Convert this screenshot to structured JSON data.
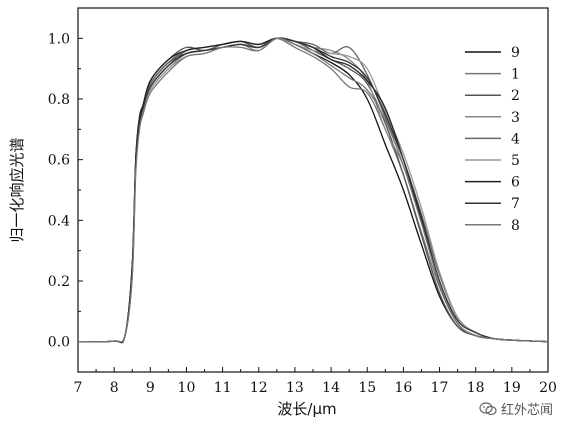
{
  "chart_data": {
    "type": "line",
    "xlabel": "波长/μm",
    "ylabel": "归一化响应光谱",
    "xlim": [
      7,
      20
    ],
    "ylim": [
      -0.1,
      1.1
    ],
    "xticks": [
      "7",
      "8",
      "9",
      "10",
      "11",
      "12",
      "13",
      "14",
      "15",
      "16",
      "17",
      "18",
      "19",
      "20"
    ],
    "yticks": [
      "0.0",
      "0.2",
      "0.4",
      "0.6",
      "0.8",
      "1.0"
    ],
    "grid": false,
    "legend_position": "right",
    "series": [
      {
        "name": "9",
        "color": "#111111",
        "x": [
          7,
          8,
          8.3,
          8.5,
          8.6,
          8.7,
          8.8,
          9,
          9.5,
          10,
          10.5,
          11,
          11.5,
          12,
          12.5,
          13,
          13.5,
          14,
          14.5,
          15,
          15.5,
          16,
          16.5,
          17,
          17.5,
          18,
          18.5,
          19,
          20
        ],
        "y": [
          0,
          0.002,
          0.02,
          0.25,
          0.6,
          0.74,
          0.78,
          0.85,
          0.92,
          0.95,
          0.96,
          0.97,
          0.98,
          0.97,
          1.0,
          0.98,
          0.95,
          0.92,
          0.88,
          0.8,
          0.65,
          0.5,
          0.32,
          0.15,
          0.05,
          0.02,
          0.01,
          0.005,
          0
        ]
      },
      {
        "name": "1",
        "color": "#777777",
        "x": [
          7,
          8,
          8.3,
          8.5,
          8.6,
          8.7,
          8.8,
          9,
          9.5,
          10,
          10.5,
          11,
          11.5,
          12,
          12.5,
          13,
          13.5,
          14,
          14.5,
          15,
          15.5,
          16,
          16.5,
          17,
          17.5,
          18,
          18.5,
          19,
          20
        ],
        "y": [
          0,
          0.002,
          0.02,
          0.22,
          0.58,
          0.72,
          0.77,
          0.84,
          0.91,
          0.96,
          0.97,
          0.98,
          0.99,
          0.98,
          1.0,
          0.97,
          0.94,
          0.9,
          0.84,
          0.82,
          0.7,
          0.55,
          0.36,
          0.18,
          0.06,
          0.02,
          0.01,
          0.005,
          0
        ]
      },
      {
        "name": "2",
        "color": "#555555",
        "x": [
          7,
          8,
          8.3,
          8.5,
          8.6,
          8.7,
          8.8,
          9,
          9.5,
          10,
          10.5,
          11,
          11.5,
          12,
          12.5,
          13,
          13.5,
          14,
          14.5,
          15,
          15.5,
          16,
          16.5,
          17,
          17.5,
          18,
          18.5,
          19,
          20
        ],
        "y": [
          0,
          0.002,
          0.02,
          0.24,
          0.6,
          0.73,
          0.78,
          0.86,
          0.93,
          0.97,
          0.96,
          0.98,
          0.99,
          0.97,
          1.0,
          0.99,
          0.96,
          0.93,
          0.9,
          0.85,
          0.72,
          0.55,
          0.35,
          0.16,
          0.05,
          0.02,
          0.01,
          0.005,
          0
        ]
      },
      {
        "name": "3",
        "color": "#888888",
        "x": [
          7,
          8,
          8.3,
          8.5,
          8.6,
          8.7,
          8.8,
          9,
          9.5,
          10,
          10.5,
          11,
          11.5,
          12,
          12.5,
          13,
          13.5,
          14,
          14.5,
          15,
          15.5,
          16,
          16.5,
          17,
          17.5,
          18,
          18.5,
          19,
          20
        ],
        "y": [
          0,
          0.002,
          0.02,
          0.23,
          0.59,
          0.72,
          0.76,
          0.83,
          0.9,
          0.95,
          0.96,
          0.97,
          0.98,
          0.96,
          1.0,
          0.99,
          0.97,
          0.96,
          0.93,
          0.86,
          0.7,
          0.58,
          0.4,
          0.2,
          0.07,
          0.03,
          0.01,
          0.005,
          0
        ]
      },
      {
        "name": "4",
        "color": "#666666",
        "x": [
          7,
          8,
          8.3,
          8.5,
          8.6,
          8.7,
          8.8,
          9,
          9.5,
          10,
          10.5,
          11,
          11.5,
          12,
          12.5,
          13,
          13.5,
          14,
          14.5,
          15,
          15.5,
          16,
          16.5,
          17,
          17.5,
          18,
          18.5,
          19,
          20
        ],
        "y": [
          0,
          0.002,
          0.02,
          0.24,
          0.6,
          0.73,
          0.77,
          0.85,
          0.92,
          0.96,
          0.97,
          0.98,
          0.99,
          0.98,
          1.0,
          0.99,
          0.98,
          0.95,
          0.97,
          0.88,
          0.74,
          0.6,
          0.42,
          0.22,
          0.08,
          0.03,
          0.01,
          0.005,
          0
        ]
      },
      {
        "name": "5",
        "color": "#999999",
        "x": [
          7,
          8,
          8.3,
          8.5,
          8.6,
          8.7,
          8.8,
          9,
          9.5,
          10,
          10.5,
          11,
          11.5,
          12,
          12.5,
          13,
          13.5,
          14,
          14.5,
          15,
          15.5,
          16,
          16.5,
          17,
          17.5,
          18,
          18.5,
          19,
          20
        ],
        "y": [
          0,
          0.002,
          0.02,
          0.22,
          0.57,
          0.71,
          0.76,
          0.83,
          0.9,
          0.94,
          0.95,
          0.97,
          0.98,
          0.97,
          1.0,
          0.98,
          0.96,
          0.95,
          0.94,
          0.9,
          0.76,
          0.62,
          0.44,
          0.23,
          0.08,
          0.03,
          0.01,
          0.005,
          0
        ]
      },
      {
        "name": "6",
        "color": "#222222",
        "x": [
          7,
          8,
          8.3,
          8.5,
          8.6,
          8.7,
          8.8,
          9,
          9.5,
          10,
          10.5,
          11,
          11.5,
          12,
          12.5,
          13,
          13.5,
          14,
          14.5,
          15,
          15.5,
          16,
          16.5,
          17,
          17.5,
          18,
          18.5,
          19,
          20
        ],
        "y": [
          0,
          0.002,
          0.02,
          0.25,
          0.61,
          0.74,
          0.78,
          0.86,
          0.93,
          0.96,
          0.97,
          0.98,
          0.99,
          0.98,
          1.0,
          0.99,
          0.97,
          0.93,
          0.91,
          0.86,
          0.77,
          0.6,
          0.4,
          0.19,
          0.06,
          0.02,
          0.01,
          0.005,
          0
        ]
      },
      {
        "name": "7",
        "color": "#333333",
        "x": [
          7,
          8,
          8.3,
          8.5,
          8.6,
          8.7,
          8.8,
          9,
          9.5,
          10,
          10.5,
          11,
          11.5,
          12,
          12.5,
          13,
          13.5,
          14,
          14.5,
          15,
          15.5,
          16,
          16.5,
          17,
          17.5,
          18,
          18.5,
          19,
          20
        ],
        "y": [
          0,
          0.002,
          0.02,
          0.23,
          0.59,
          0.72,
          0.77,
          0.84,
          0.91,
          0.95,
          0.96,
          0.97,
          0.98,
          0.97,
          1.0,
          0.99,
          0.97,
          0.94,
          0.92,
          0.87,
          0.75,
          0.6,
          0.41,
          0.2,
          0.07,
          0.03,
          0.01,
          0.005,
          0
        ]
      },
      {
        "name": "8",
        "color": "#777777",
        "x": [
          7,
          8,
          8.3,
          8.5,
          8.6,
          8.7,
          8.8,
          9,
          9.5,
          10,
          10.5,
          11,
          11.5,
          12,
          12.5,
          13,
          13.5,
          14,
          14.5,
          15,
          15.5,
          16,
          16.5,
          17,
          17.5,
          18,
          18.5,
          19,
          20
        ],
        "y": [
          0,
          0.002,
          0.02,
          0.21,
          0.56,
          0.7,
          0.75,
          0.82,
          0.89,
          0.94,
          0.95,
          0.97,
          0.97,
          0.96,
          1.0,
          0.98,
          0.95,
          0.91,
          0.87,
          0.83,
          0.73,
          0.58,
          0.39,
          0.19,
          0.06,
          0.02,
          0.01,
          0.005,
          0
        ]
      }
    ]
  },
  "watermark": {
    "text": "红外芯闻",
    "icon": "wechat-icon"
  }
}
